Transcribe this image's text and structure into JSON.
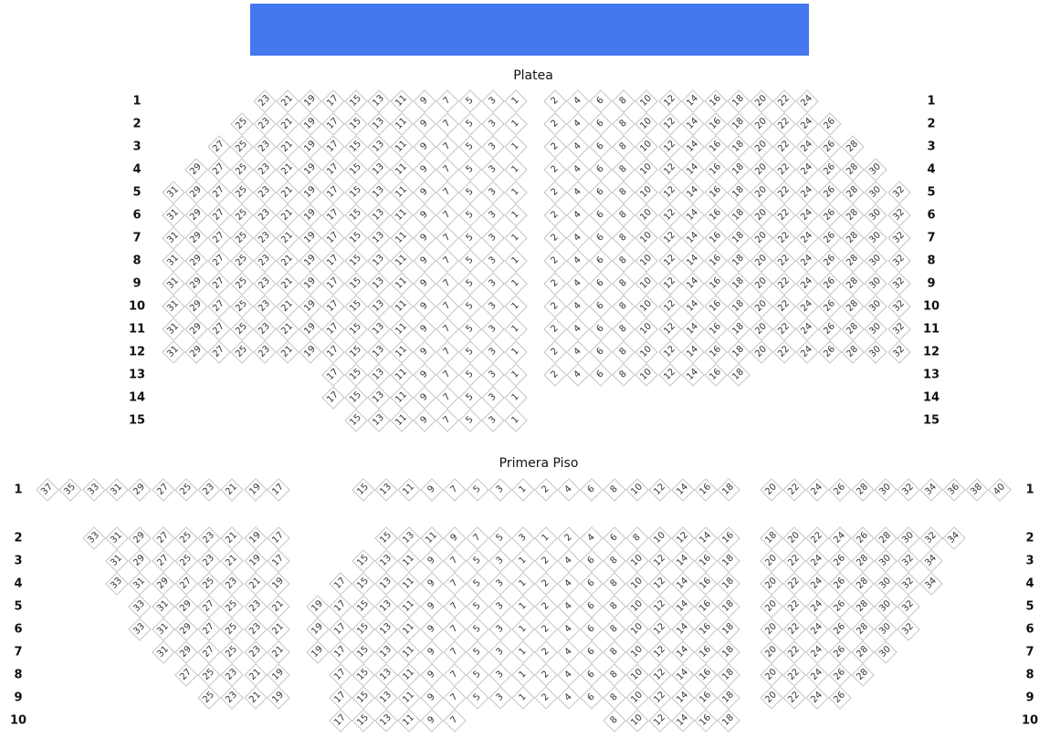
{
  "stage": {
    "color": "#4578EF"
  },
  "platea": {
    "title": "Platea",
    "rows": [
      {
        "label": "1",
        "blocks": [
          [
            23,
            21,
            19,
            17,
            15,
            13,
            11,
            9,
            7,
            5,
            3,
            1
          ],
          [
            2,
            4,
            6,
            8,
            10,
            12,
            14,
            16,
            18,
            20,
            22,
            24
          ]
        ]
      },
      {
        "label": "2",
        "blocks": [
          [
            25,
            23,
            21,
            19,
            17,
            15,
            13,
            11,
            9,
            7,
            5,
            3,
            1
          ],
          [
            2,
            4,
            6,
            8,
            10,
            12,
            14,
            16,
            18,
            20,
            22,
            24,
            26
          ]
        ]
      },
      {
        "label": "3",
        "blocks": [
          [
            27,
            25,
            23,
            21,
            19,
            17,
            15,
            13,
            11,
            9,
            7,
            5,
            3,
            1
          ],
          [
            2,
            4,
            6,
            8,
            10,
            12,
            14,
            16,
            18,
            20,
            22,
            24,
            26,
            28
          ]
        ]
      },
      {
        "label": "4",
        "blocks": [
          [
            29,
            27,
            25,
            23,
            21,
            19,
            17,
            15,
            13,
            11,
            9,
            7,
            5,
            3,
            1
          ],
          [
            2,
            4,
            6,
            8,
            10,
            12,
            14,
            16,
            18,
            20,
            22,
            24,
            26,
            28,
            30
          ]
        ]
      },
      {
        "label": "5",
        "blocks": [
          [
            31,
            29,
            27,
            25,
            23,
            21,
            19,
            17,
            15,
            13,
            11,
            9,
            7,
            5,
            3,
            1
          ],
          [
            2,
            4,
            6,
            8,
            10,
            12,
            14,
            16,
            18,
            20,
            22,
            24,
            26,
            28,
            30,
            32
          ]
        ]
      },
      {
        "label": "6",
        "blocks": [
          [
            31,
            29,
            27,
            25,
            23,
            21,
            19,
            17,
            15,
            13,
            11,
            9,
            7,
            5,
            3,
            1
          ],
          [
            2,
            4,
            6,
            8,
            10,
            12,
            14,
            16,
            18,
            20,
            22,
            24,
            26,
            28,
            30,
            32
          ]
        ]
      },
      {
        "label": "7",
        "blocks": [
          [
            31,
            29,
            27,
            25,
            23,
            21,
            19,
            17,
            15,
            13,
            11,
            9,
            7,
            5,
            3,
            1
          ],
          [
            2,
            4,
            6,
            8,
            10,
            12,
            14,
            16,
            18,
            20,
            22,
            24,
            26,
            28,
            30,
            32
          ]
        ]
      },
      {
        "label": "8",
        "blocks": [
          [
            31,
            29,
            27,
            25,
            23,
            21,
            19,
            17,
            15,
            13,
            11,
            9,
            7,
            5,
            3,
            1
          ],
          [
            2,
            4,
            6,
            8,
            10,
            12,
            14,
            16,
            18,
            20,
            22,
            24,
            26,
            28,
            30,
            32
          ]
        ]
      },
      {
        "label": "9",
        "blocks": [
          [
            31,
            29,
            27,
            25,
            23,
            21,
            19,
            17,
            15,
            13,
            11,
            9,
            7,
            5,
            3,
            1
          ],
          [
            2,
            4,
            6,
            8,
            10,
            12,
            14,
            16,
            18,
            20,
            22,
            24,
            26,
            28,
            30,
            32
          ]
        ]
      },
      {
        "label": "10",
        "blocks": [
          [
            31,
            29,
            27,
            25,
            23,
            21,
            19,
            17,
            15,
            13,
            11,
            9,
            7,
            5,
            3,
            1
          ],
          [
            2,
            4,
            6,
            8,
            10,
            12,
            14,
            16,
            18,
            20,
            22,
            24,
            26,
            28,
            30,
            32
          ]
        ]
      },
      {
        "label": "11",
        "blocks": [
          [
            31,
            29,
            27,
            25,
            23,
            21,
            19,
            17,
            15,
            13,
            11,
            9,
            7,
            5,
            3,
            1
          ],
          [
            2,
            4,
            6,
            8,
            10,
            12,
            14,
            16,
            18,
            20,
            22,
            24,
            26,
            28,
            30,
            32
          ]
        ]
      },
      {
        "label": "12",
        "blocks": [
          [
            31,
            29,
            27,
            25,
            23,
            21,
            19,
            17,
            15,
            13,
            11,
            9,
            7,
            5,
            3,
            1
          ],
          [
            2,
            4,
            6,
            8,
            10,
            12,
            14,
            16,
            18,
            20,
            22,
            24,
            26,
            28,
            30,
            32
          ]
        ]
      },
      {
        "label": "13",
        "blocks": [
          [
            17,
            15,
            13,
            11,
            9,
            7,
            5,
            3,
            1
          ],
          [
            2,
            4,
            6,
            8,
            10,
            12,
            14,
            16,
            18
          ]
        ]
      },
      {
        "label": "14",
        "blocks": [
          [
            17,
            15,
            13,
            11,
            9,
            7,
            5,
            3,
            1
          ],
          []
        ]
      },
      {
        "label": "15",
        "blocks": [
          [
            15,
            13,
            11,
            9,
            7,
            5,
            3,
            1
          ],
          []
        ]
      }
    ]
  },
  "primera": {
    "title": "Primera Piso",
    "rows": [
      {
        "label": "1",
        "blocks": [
          [
            37,
            35,
            33,
            31,
            29,
            27,
            25,
            23,
            21,
            19,
            17
          ],
          [
            15,
            13,
            11,
            9,
            7,
            5,
            3,
            1
          ],
          [
            2,
            4,
            6,
            8,
            10,
            12,
            14,
            16,
            18
          ],
          [
            20,
            22,
            24,
            26,
            28,
            30,
            32,
            34,
            36,
            38,
            40
          ]
        ]
      },
      {
        "label": "2",
        "blocks": [
          [
            33,
            31,
            29,
            27,
            25,
            23,
            21,
            19,
            17
          ],
          [
            15,
            13,
            11,
            9,
            7,
            5,
            3,
            1
          ],
          [
            2,
            4,
            6,
            8,
            10,
            12,
            14,
            16
          ],
          [
            18,
            20,
            22,
            24,
            26,
            28,
            30,
            32,
            34
          ]
        ]
      },
      {
        "label": "3",
        "blocks": [
          [
            31,
            29,
            27,
            25,
            23,
            21,
            19,
            17
          ],
          [
            15,
            13,
            11,
            9,
            7,
            5,
            3,
            1
          ],
          [
            2,
            4,
            6,
            8,
            10,
            12,
            14,
            16,
            18
          ],
          [
            20,
            22,
            24,
            26,
            28,
            30,
            32,
            34
          ]
        ]
      },
      {
        "label": "4",
        "blocks": [
          [
            33,
            31,
            29,
            27,
            25,
            23,
            21,
            19
          ],
          [
            17,
            15,
            13,
            11,
            9,
            7,
            5,
            3,
            1
          ],
          [
            2,
            4,
            6,
            8,
            10,
            12,
            14,
            16,
            18
          ],
          [
            20,
            22,
            24,
            26,
            28,
            30,
            32,
            34
          ]
        ]
      },
      {
        "label": "5",
        "blocks": [
          [
            33,
            31,
            29,
            27,
            25,
            23,
            21
          ],
          [
            19,
            17,
            15,
            13,
            11,
            9,
            7,
            5,
            3,
            1
          ],
          [
            2,
            4,
            6,
            8,
            10,
            12,
            14,
            16,
            18
          ],
          [
            20,
            22,
            24,
            26,
            28,
            30,
            32
          ]
        ]
      },
      {
        "label": "6",
        "blocks": [
          [
            33,
            31,
            29,
            27,
            25,
            23,
            21
          ],
          [
            19,
            17,
            15,
            13,
            11,
            9,
            7,
            5,
            3,
            1
          ],
          [
            2,
            4,
            6,
            8,
            10,
            12,
            14,
            16,
            18
          ],
          [
            20,
            22,
            24,
            26,
            28,
            30,
            32
          ]
        ]
      },
      {
        "label": "7",
        "blocks": [
          [
            31,
            29,
            27,
            25,
            23,
            21
          ],
          [
            19,
            17,
            15,
            13,
            11,
            9,
            7,
            5,
            3,
            1
          ],
          [
            2,
            4,
            6,
            8,
            10,
            12,
            14,
            16,
            18
          ],
          [
            20,
            22,
            24,
            26,
            28,
            30
          ]
        ]
      },
      {
        "label": "8",
        "blocks": [
          [
            27,
            25,
            23,
            21,
            19
          ],
          [
            17,
            15,
            13,
            11,
            9,
            7,
            5,
            3,
            1
          ],
          [
            2,
            4,
            6,
            8,
            10,
            12,
            14,
            16,
            18
          ],
          [
            20,
            22,
            24,
            26,
            28
          ]
        ]
      },
      {
        "label": "9",
        "blocks": [
          [
            25,
            23,
            21,
            19
          ],
          [
            17,
            15,
            13,
            11,
            9,
            7,
            5,
            3,
            1
          ],
          [
            2,
            4,
            6,
            8,
            10,
            12,
            14,
            16,
            18
          ],
          [
            20,
            22,
            24,
            26
          ]
        ]
      },
      {
        "label": "10",
        "blocks": [
          [],
          [
            17,
            15,
            13,
            11,
            9,
            7
          ],
          [
            8,
            10,
            12,
            14,
            16,
            18
          ],
          []
        ]
      }
    ]
  }
}
